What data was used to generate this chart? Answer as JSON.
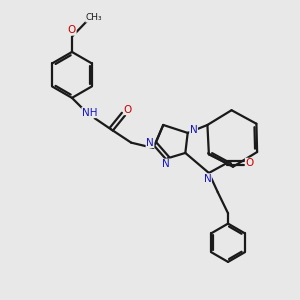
{
  "bg_color": "#e8e8e8",
  "bond_color": "#1a1a1a",
  "N_color": "#1414cc",
  "O_color": "#cc0000",
  "lw": 1.6,
  "xlim": [
    0,
    10
  ],
  "ylim": [
    0,
    10
  ]
}
